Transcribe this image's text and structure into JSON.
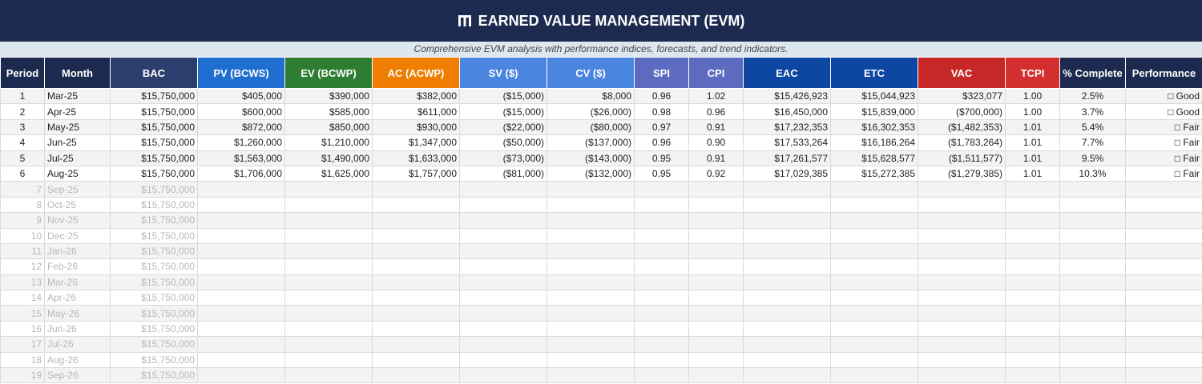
{
  "header": {
    "title": "EARNED VALUE MANAGEMENT (EVM)",
    "subtitle": "Comprehensive EVM analysis with performance indices, forecasts, and trend indicators."
  },
  "table": {
    "columns": [
      "Period",
      "Month",
      "BAC",
      "PV (BCWS)",
      "EV (BCWP)",
      "AC (ACWP)",
      "SV ($)",
      "CV ($)",
      "SPI",
      "CPI",
      "EAC",
      "ETC",
      "VAC",
      "TCPI",
      "% Complete",
      "Performance"
    ],
    "rows": [
      [
        "1",
        "Mar-25",
        "$15,750,000",
        "$405,000",
        "$390,000",
        "$382,000",
        "($15,000)",
        "$8,000",
        "0.96",
        "1.02",
        "$15,426,923",
        "$15,044,923",
        "$323,077",
        "1.00",
        "2.5%",
        "□ Good"
      ],
      [
        "2",
        "Apr-25",
        "$15,750,000",
        "$600,000",
        "$585,000",
        "$611,000",
        "($15,000)",
        "($26,000)",
        "0.98",
        "0.96",
        "$16,450,000",
        "$15,839,000",
        "($700,000)",
        "1.00",
        "3.7%",
        "□ Good"
      ],
      [
        "3",
        "May-25",
        "$15,750,000",
        "$872,000",
        "$850,000",
        "$930,000",
        "($22,000)",
        "($80,000)",
        "0.97",
        "0.91",
        "$17,232,353",
        "$16,302,353",
        "($1,482,353)",
        "1.01",
        "5.4%",
        "□ Fair"
      ],
      [
        "4",
        "Jun-25",
        "$15,750,000",
        "$1,260,000",
        "$1,210,000",
        "$1,347,000",
        "($50,000)",
        "($137,000)",
        "0.96",
        "0.90",
        "$17,533,264",
        "$16,186,264",
        "($1,783,264)",
        "1.01",
        "7.7%",
        "□ Fair"
      ],
      [
        "5",
        "Jul-25",
        "$15,750,000",
        "$1,563,000",
        "$1,490,000",
        "$1,633,000",
        "($73,000)",
        "($143,000)",
        "0.95",
        "0.91",
        "$17,261,577",
        "$15,628,577",
        "($1,511,577)",
        "1.01",
        "9.5%",
        "□ Fair"
      ],
      [
        "6",
        "Aug-25",
        "$15,750,000",
        "$1,706,000",
        "$1,625,000",
        "$1,757,000",
        "($81,000)",
        "($132,000)",
        "0.95",
        "0.92",
        "$17,029,385",
        "$15,272,385",
        "($1,279,385)",
        "1.01",
        "10.3%",
        "□ Fair"
      ]
    ],
    "future_rows": [
      [
        "7",
        "Sep-25",
        "$15,750,000"
      ],
      [
        "8",
        "Oct-25",
        "$15,750,000"
      ],
      [
        "9",
        "Nov-25",
        "$15,750,000"
      ],
      [
        "10",
        "Dec-25",
        "$15,750,000"
      ],
      [
        "11",
        "Jan-26",
        "$15,750,000"
      ],
      [
        "12",
        "Feb-26",
        "$15,750,000"
      ],
      [
        "13",
        "Mar-26",
        "$15,750,000"
      ],
      [
        "14",
        "Apr-26",
        "$15,750,000"
      ],
      [
        "15",
        "May-26",
        "$15,750,000"
      ],
      [
        "16",
        "Jun-26",
        "$15,750,000"
      ],
      [
        "17",
        "Jul-26",
        "$15,750,000"
      ],
      [
        "18",
        "Aug-26",
        "$15,750,000"
      ],
      [
        "19",
        "Sep-26",
        "$15,750,000"
      ]
    ]
  }
}
